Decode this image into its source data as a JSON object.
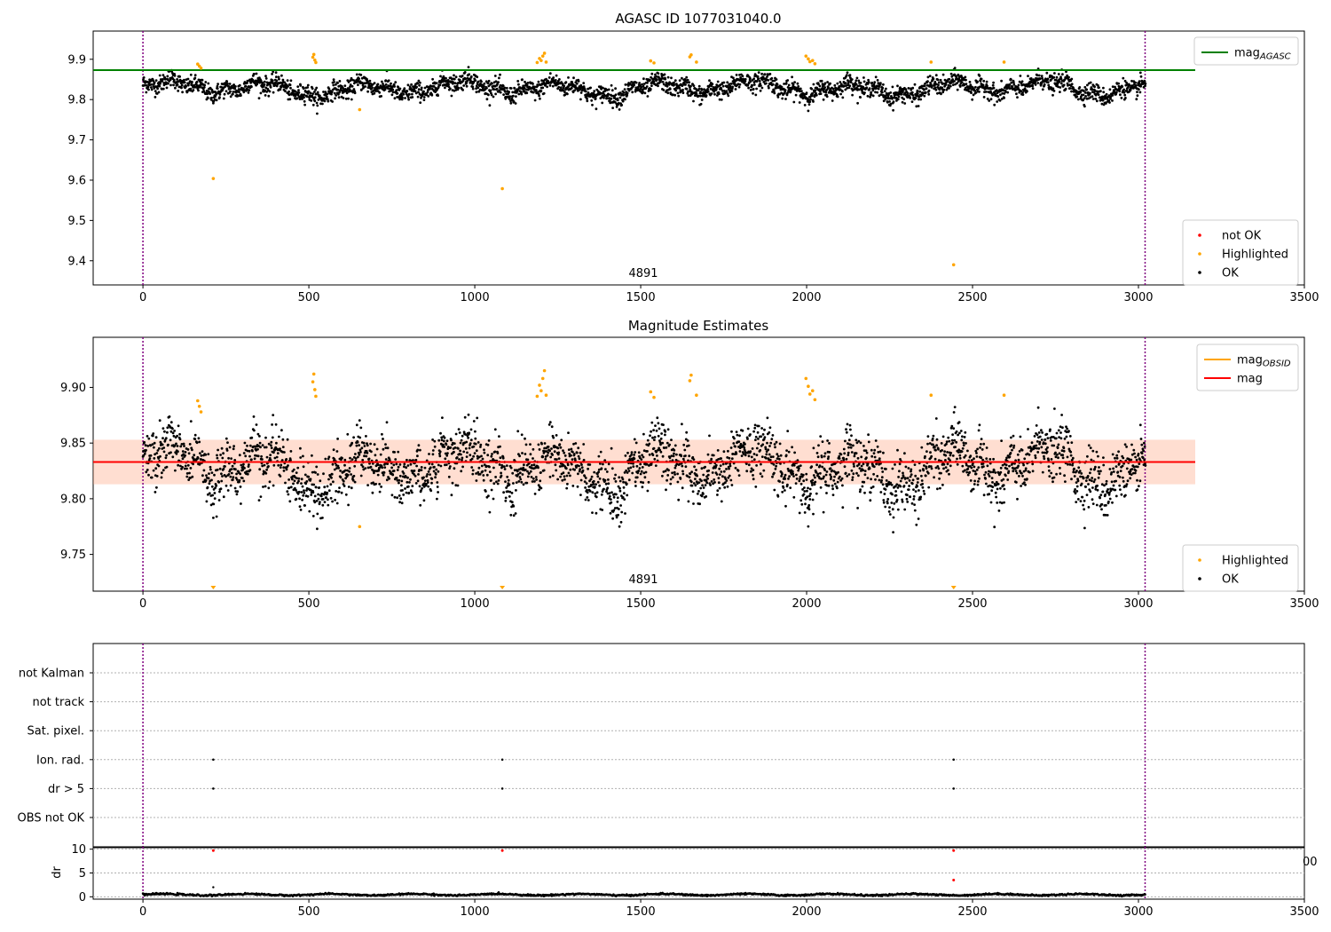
{
  "figure": {
    "title": "AGASC ID 1077031040.0",
    "obsid_label": "4891"
  },
  "chart_data": [
    {
      "type": "scatter",
      "title": "AGASC ID 1077031040.0",
      "xlim": [
        -150,
        3500
      ],
      "ylim": [
        9.34,
        9.97
      ],
      "xticks": [
        0,
        500,
        1000,
        1500,
        2000,
        2500,
        3000,
        3500
      ],
      "yticks": [
        9.4,
        9.5,
        9.6,
        9.7,
        9.8,
        9.9
      ],
      "ytick_labels": [
        "9.4",
        "9.5",
        "9.6",
        "9.7",
        "9.8",
        "9.9"
      ],
      "hline": {
        "name": "mag_AGASC",
        "value": 9.873,
        "color": "#008000"
      },
      "vlines": [
        0,
        3020
      ],
      "annotation": "4891",
      "baseline": {
        "mean": 9.828,
        "amplitude": 0.018
      },
      "highlighted_points": [
        {
          "x": 165,
          "y": 9.888
        },
        {
          "x": 170,
          "y": 9.883
        },
        {
          "x": 175,
          "y": 9.878
        },
        {
          "x": 212,
          "y": 9.604
        },
        {
          "x": 512,
          "y": 9.905
        },
        {
          "x": 515,
          "y": 9.912
        },
        {
          "x": 518,
          "y": 9.898
        },
        {
          "x": 521,
          "y": 9.892
        },
        {
          "x": 653,
          "y": 9.775
        },
        {
          "x": 1083,
          "y": 9.579
        },
        {
          "x": 1188,
          "y": 9.892
        },
        {
          "x": 1195,
          "y": 9.902
        },
        {
          "x": 1200,
          "y": 9.897
        },
        {
          "x": 1205,
          "y": 9.908
        },
        {
          "x": 1210,
          "y": 9.915
        },
        {
          "x": 1215,
          "y": 9.893
        },
        {
          "x": 1530,
          "y": 9.896
        },
        {
          "x": 1540,
          "y": 9.891
        },
        {
          "x": 1648,
          "y": 9.906
        },
        {
          "x": 1652,
          "y": 9.911
        },
        {
          "x": 1668,
          "y": 9.893
        },
        {
          "x": 1998,
          "y": 9.908
        },
        {
          "x": 2005,
          "y": 9.901
        },
        {
          "x": 2010,
          "y": 9.894
        },
        {
          "x": 2018,
          "y": 9.897
        },
        {
          "x": 2025,
          "y": 9.889
        },
        {
          "x": 2375,
          "y": 9.893
        },
        {
          "x": 2443,
          "y": 9.39
        },
        {
          "x": 2595,
          "y": 9.893
        }
      ],
      "legends": [
        {
          "position": "upper right",
          "entries": [
            {
              "label": "mag",
              "sub": "AGASC",
              "color": "#008000",
              "marker": "line"
            }
          ]
        },
        {
          "position": "lower right",
          "entries": [
            {
              "label": "not OK",
              "color": "#ff0000",
              "marker": "dot"
            },
            {
              "label": "Highlighted",
              "color": "#ffa500",
              "marker": "dot"
            },
            {
              "label": "OK",
              "color": "#000000",
              "marker": "dot"
            }
          ]
        }
      ]
    },
    {
      "type": "scatter",
      "title": "Magnitude Estimates",
      "xlim": [
        -150,
        3500
      ],
      "ylim": [
        9.717,
        9.945
      ],
      "xticks": [
        0,
        500,
        1000,
        1500,
        2000,
        2500,
        3000,
        3500
      ],
      "yticks": [
        9.75,
        9.8,
        9.85,
        9.9
      ],
      "ytick_labels": [
        "9.75",
        "9.80",
        "9.85",
        "9.90"
      ],
      "lines": [
        {
          "name": "mag_OBSID",
          "value": 9.833,
          "color": "#ffa500"
        },
        {
          "name": "mag",
          "value": 9.833,
          "color": "#ff0000"
        }
      ],
      "band": {
        "low": 9.813,
        "high": 9.853
      },
      "vlines": [
        0,
        3020
      ],
      "annotation": "4891",
      "offscale_markers_x": [
        212,
        1083,
        2443
      ],
      "legends": [
        {
          "position": "upper right",
          "entries": [
            {
              "label": "mag",
              "sub": "OBSID",
              "color": "#ffa500",
              "marker": "line"
            },
            {
              "label": "mag",
              "color": "#ff0000",
              "marker": "line"
            }
          ]
        },
        {
          "position": "lower right",
          "entries": [
            {
              "label": "Highlighted",
              "color": "#ffa500",
              "marker": "dot"
            },
            {
              "label": "OK",
              "color": "#000000",
              "marker": "dot"
            }
          ]
        }
      ]
    },
    {
      "type": "scatter",
      "title": "",
      "categories": [
        "not Kalman",
        "not track",
        "Sat. pixel.",
        "Ion. rad.",
        "dr > 5",
        "OBS not OK"
      ],
      "flags": [
        {
          "category": "Ion. rad.",
          "x": [
            212,
            1083,
            2443
          ]
        },
        {
          "category": "dr > 5",
          "x": [
            212,
            1083,
            2443
          ]
        }
      ],
      "vlines": [
        0,
        3020
      ]
    },
    {
      "type": "scatter",
      "title": "",
      "ylabel": "dr",
      "xlim": [
        -150,
        3500
      ],
      "ylim": [
        -0.5,
        10.5
      ],
      "xticks": [
        0,
        500,
        1000,
        1500,
        2000,
        2500,
        3000,
        3500
      ],
      "yticks": [
        0,
        5,
        10
      ],
      "ytick_labels": [
        "0",
        "5",
        "10"
      ],
      "red_points": [
        {
          "x": 212,
          "y": 9.7
        },
        {
          "x": 1083,
          "y": 9.7
        },
        {
          "x": 2443,
          "y": 9.7
        },
        {
          "x": 2443,
          "y": 3.5
        }
      ],
      "black_points": [
        {
          "x": 212,
          "y": 2.0
        }
      ],
      "baseline": {
        "mean": 0.45,
        "amplitude": 0.2
      },
      "clipped_tick_text": "00"
    }
  ]
}
